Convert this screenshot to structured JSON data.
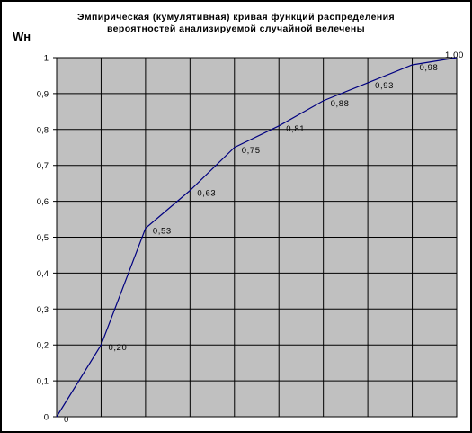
{
  "chart_data": {
    "type": "line",
    "title_lines": [
      "Эмпирическая (кумулятивная) кривая функций распределения",
      "вероятностей анализируемой случайной велечены"
    ],
    "ylabel": "Wн",
    "xlabel": "",
    "x": [
      0,
      1,
      2,
      3,
      4,
      5,
      6,
      7,
      8,
      9
    ],
    "y": [
      0,
      0.2,
      0.525,
      0.63,
      0.75,
      0.81,
      0.88,
      0.93,
      0.98,
      1.0
    ],
    "data_labels": [
      "0",
      "0,20",
      "0,53",
      "0,63",
      "0,75",
      "0,81",
      "0,88",
      "0,93",
      "0,98",
      "1,00"
    ],
    "xlim": [
      0,
      9
    ],
    "ylim": [
      0,
      1
    ],
    "yticks": [
      0,
      0.1,
      0.2,
      0.3,
      0.4,
      0.5,
      0.6,
      0.7,
      0.8,
      0.9,
      1
    ],
    "ytick_labels": [
      "0",
      "0,1",
      "0,2",
      "0,3",
      "0,4",
      "0,5",
      "0,6",
      "0,7",
      "0,8",
      "0,9",
      "1"
    ],
    "grid": true,
    "legend": "none",
    "colors": {
      "plot_background": "#c0c0c0",
      "grid": "#000000",
      "line": "#000080"
    }
  }
}
